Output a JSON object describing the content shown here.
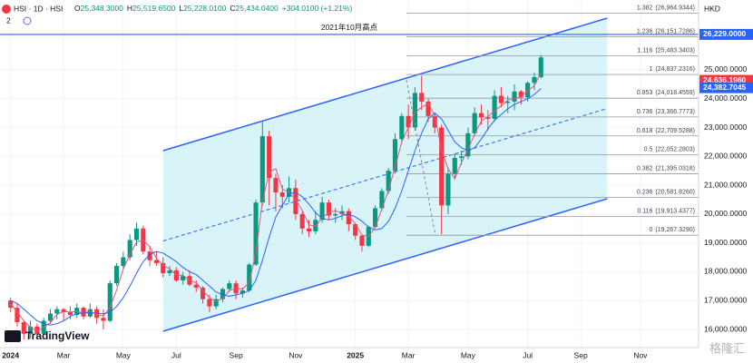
{
  "header": {
    "symbol": "HSI · 1D · HSI",
    "ohlc": [
      {
        "key": "O",
        "value": "25,348.3000"
      },
      {
        "key": "H",
        "value": "25,519.6500"
      },
      {
        "key": "L",
        "value": "25,228.0100"
      },
      {
        "key": "C",
        "value": "25,434.0400"
      }
    ],
    "change": "+304.0100 (+1.21%)",
    "indicators": "2",
    "currency": "HKD",
    "logo": "TradingView",
    "watermark": "格隆汇"
  },
  "chart_data": {
    "type": "candlestick",
    "categories": [
      "2024",
      null,
      null,
      null,
      null,
      null,
      null,
      null,
      "Mar",
      null,
      null,
      null,
      null,
      null,
      null,
      null,
      null,
      "May",
      null,
      null,
      null,
      null,
      null,
      null,
      null,
      "Jul",
      null,
      null,
      null,
      null,
      null,
      null,
      null,
      null,
      "Sep",
      null,
      null,
      null,
      null,
      null,
      null,
      null,
      null,
      "Nov",
      null,
      null,
      null,
      null,
      null,
      null,
      null,
      null,
      "2025",
      null,
      null,
      null,
      null,
      null,
      null,
      null,
      "Mar",
      null,
      null,
      null,
      null,
      null,
      null,
      null,
      null,
      "May",
      null,
      null,
      null,
      null,
      null,
      null,
      null,
      null,
      "Jul",
      null,
      null,
      null,
      null,
      null,
      null,
      null,
      "Sep",
      null,
      null,
      null,
      null,
      null,
      null,
      null,
      null,
      "Nov",
      null,
      null,
      null,
      null,
      null,
      null,
      null,
      null
    ],
    "open": [
      17000,
      16750,
      16250,
      15850,
      16100,
      15850,
      16300,
      16550,
      16700,
      16600,
      16500,
      16750,
      16450,
      16700,
      16400,
      16300,
      17600,
      18200,
      18500,
      19100,
      19500,
      18700,
      18400,
      18300,
      17950,
      18050,
      17700,
      17850,
      17550,
      17450,
      17050,
      16800,
      17050,
      17400,
      17600,
      17250,
      17350,
      18250,
      20400,
      22700,
      21250,
      20750,
      20600,
      20900,
      20000,
      19500,
      19400,
      19800,
      20400,
      19950,
      20000,
      20100,
      19650,
      19250,
      18900,
      19550,
      20200,
      20800,
      21500,
      22600,
      23400,
      23000,
      24200,
      23900,
      23400,
      23000,
      20300,
      21400,
      21950,
      22000,
      22800,
      23500,
      23350,
      23300,
      24100,
      23850,
      23900,
      24250,
      24050,
      24550,
      24750,
      null,
      null,
      null,
      null,
      null,
      null,
      null,
      null,
      null,
      null,
      null,
      null,
      null,
      null,
      null,
      null,
      null,
      null,
      null,
      null,
      null,
      null,
      null
    ],
    "high": [
      17100,
      16900,
      16300,
      16300,
      16200,
      16400,
      16700,
      16800,
      16750,
      16800,
      16900,
      16800,
      16900,
      16800,
      16700,
      17700,
      18300,
      18700,
      19300,
      19700,
      19600,
      18900,
      18700,
      18500,
      18200,
      18150,
      18000,
      18050,
      17700,
      17500,
      17200,
      17200,
      17450,
      17700,
      17700,
      17450,
      18300,
      20500,
      23200,
      22900,
      21400,
      21000,
      21300,
      21200,
      20100,
      19800,
      20100,
      20600,
      20500,
      20200,
      20300,
      20200,
      19700,
      19300,
      19600,
      20300,
      20900,
      21600,
      22800,
      23500,
      23800,
      24400,
      24800,
      24000,
      23500,
      23100,
      21600,
      22100,
      22200,
      23000,
      23700,
      23800,
      23600,
      24300,
      24400,
      24100,
      24500,
      24300,
      24600,
      24900,
      25520,
      null,
      null,
      null,
      null,
      null,
      null,
      null,
      null,
      null,
      null,
      null,
      null,
      null,
      null,
      null,
      null,
      null,
      null,
      null,
      null,
      null,
      null,
      null
    ],
    "low": [
      16600,
      16100,
      15650,
      15700,
      15700,
      15800,
      16200,
      16350,
      16300,
      16350,
      16400,
      16350,
      16400,
      16200,
      16000,
      16250,
      17500,
      18100,
      18400,
      18900,
      18600,
      18200,
      18200,
      17800,
      17850,
      17650,
      17550,
      17500,
      17300,
      16900,
      16600,
      16700,
      16950,
      17300,
      17050,
      17100,
      17300,
      18200,
      20300,
      20300,
      20100,
      20200,
      20400,
      19800,
      19300,
      19200,
      19300,
      19700,
      19800,
      19700,
      19800,
      19400,
      19100,
      18700,
      18850,
      19500,
      20100,
      20700,
      21400,
      22500,
      22600,
      22900,
      23600,
      23200,
      22800,
      19300,
      20000,
      21200,
      21700,
      21900,
      22700,
      23100,
      22900,
      23200,
      23700,
      23500,
      23600,
      23800,
      23900,
      24300,
      24700,
      null,
      null,
      null,
      null,
      null,
      null,
      null,
      null,
      null,
      null,
      null,
      null,
      null,
      null,
      null,
      null,
      null,
      null,
      null,
      null,
      null,
      null,
      null
    ],
    "close": [
      16750,
      16250,
      15850,
      16100,
      15850,
      16300,
      16550,
      16700,
      16600,
      16500,
      16750,
      16450,
      16700,
      16400,
      16300,
      17600,
      18200,
      18500,
      19100,
      19500,
      18700,
      18400,
      18300,
      17950,
      18050,
      17700,
      17850,
      17550,
      17450,
      17050,
      16800,
      17050,
      17400,
      17600,
      17250,
      17350,
      18250,
      20400,
      22700,
      21250,
      20750,
      20600,
      20900,
      20000,
      19500,
      19400,
      19800,
      20400,
      19950,
      20000,
      20100,
      19650,
      19250,
      18900,
      19550,
      20200,
      20800,
      21500,
      22600,
      23400,
      23000,
      24200,
      23900,
      23400,
      23000,
      20300,
      21400,
      21950,
      22000,
      22800,
      23500,
      23350,
      23300,
      24100,
      23850,
      23900,
      24250,
      24050,
      24550,
      24750,
      25430,
      null,
      null,
      null,
      null,
      null,
      null,
      null,
      null,
      null,
      null,
      null,
      null,
      null,
      null,
      null,
      null,
      null,
      null,
      null,
      null,
      null,
      null,
      null
    ],
    "ma": [
      {
        "color": "#e8537a",
        "values": [
          16900,
          16600,
          16300,
          16070,
          15950,
          16080,
          16230,
          16520,
          16620,
          16600,
          16620,
          16570,
          16630,
          16520,
          16470,
          16770,
          17370,
          18100,
          18600,
          19030,
          19100,
          18870,
          18470,
          18220,
          18100,
          17900,
          17870,
          17700,
          17620,
          17350,
          17100,
          16970,
          17080,
          17350,
          17420,
          17400,
          17620,
          18670,
          20450,
          21450,
          21570,
          20870,
          20750,
          20500,
          20130,
          19630,
          19570,
          19870,
          20050,
          20120,
          20020,
          19920,
          19670,
          19270,
          19230,
          19550,
          20180,
          20830,
          21630,
          22500,
          23000,
          23530,
          23700,
          23830,
          23430,
          22230,
          21570,
          21220,
          21780,
          22250,
          22770,
          23220,
          23380,
          23580,
          23750,
          23950,
          24000,
          24070,
          24280,
          24450,
          24910,
          null,
          null,
          null,
          null,
          null,
          null,
          null,
          null,
          null,
          null,
          null,
          null,
          null,
          null,
          null,
          null,
          null,
          null,
          null,
          null,
          null,
          null,
          null
        ]
      },
      {
        "color": "#2962ff",
        "values": [
          17000,
          16900,
          16700,
          16500,
          16300,
          16200,
          16150,
          16200,
          16300,
          16450,
          16550,
          16570,
          16580,
          16560,
          16540,
          16600,
          16800,
          17100,
          17500,
          17950,
          18350,
          18600,
          18700,
          18650,
          18500,
          18350,
          18150,
          18000,
          17900,
          17700,
          17500,
          17300,
          17200,
          17150,
          17200,
          17250,
          17350,
          17700,
          18400,
          19200,
          19900,
          20300,
          20700,
          20750,
          20600,
          20350,
          20050,
          19850,
          19800,
          19850,
          19950,
          20000,
          19900,
          19750,
          19550,
          19450,
          19500,
          19750,
          20200,
          20800,
          21500,
          22200,
          22800,
          23300,
          23500,
          23300,
          22900,
          22500,
          22300,
          22200,
          22300,
          22600,
          22950,
          23250,
          23450,
          23650,
          23800,
          23900,
          24000,
          24150,
          24350,
          null,
          null,
          null,
          null,
          null,
          null,
          null,
          null,
          null,
          null,
          null,
          null,
          null,
          null,
          null,
          null,
          null,
          null,
          null,
          null,
          null,
          null,
          null
        ]
      }
    ],
    "up_color": "#089981",
    "down_color": "#f23645",
    "ylim": [
      15371,
      27422
    ],
    "yticks": [
      {
        "value": 16000,
        "label": "16,000.0000"
      },
      {
        "value": 17000,
        "label": "17,000.0000"
      },
      {
        "value": 18000,
        "label": "18,000.0000"
      },
      {
        "value": 19000,
        "label": "19,000.0000"
      },
      {
        "value": 20000,
        "label": "20,000.0000"
      },
      {
        "value": 21000,
        "label": "21,000.0000"
      },
      {
        "value": 22000,
        "label": "22,000.0000"
      },
      {
        "value": 23000,
        "label": "23,000.0000"
      },
      {
        "value": 24000,
        "label": "24,000.0000"
      },
      {
        "value": 25000,
        "label": "25,000.0000"
      }
    ],
    "grid": true,
    "channel": {
      "from": 23,
      "to": 90,
      "upper": [
        22199,
        26793
      ],
      "lower": [
        15937,
        20531
      ],
      "color": "#2962ff",
      "fill": "#d9f4f8"
    },
    "hline": {
      "value": 26229,
      "label": "2021年10月高点",
      "color": "#2962ff"
    },
    "fib_levels": [
      {
        "ratio": "1.382",
        "value": 26964.9344,
        "label": "(26,964.9344)"
      },
      {
        "ratio": "1.236",
        "value": 26151.7286,
        "label": "(26,151.7286)"
      },
      {
        "ratio": "1.116",
        "value": 25483.3403,
        "label": "(25,483.3403)"
      },
      {
        "ratio": "1",
        "value": 24837.2316,
        "label": "(24,837.2316)"
      },
      {
        "ratio": "0.853",
        "value": 24018.4559,
        "label": "(24,018.4559)"
      },
      {
        "ratio": "0.736",
        "value": 23366.7773,
        "label": "(23,366.7773)"
      },
      {
        "ratio": "0.618",
        "value": 22709.5288,
        "label": "(22,709.5288)"
      },
      {
        "ratio": "0.5",
        "value": 22052.2803,
        "label": "(22,052.2803)"
      },
      {
        "ratio": "0.382",
        "value": 21395.0318,
        "label": "(21,395.0318)"
      },
      {
        "ratio": "0.236",
        "value": 20581.826,
        "label": "(20,581.8260)"
      },
      {
        "ratio": "0.116",
        "value": 19913.4377,
        "label": "(19,913.4377)"
      },
      {
        "ratio": "0",
        "value": 19267.329,
        "label": "(19,267.3290)"
      }
    ],
    "price_labels": [
      {
        "value": 26229,
        "label": "26,229.0000",
        "color": "#2962ff"
      },
      {
        "value": 24636.196,
        "label": "24,636.1960",
        "color": "#f23645"
      },
      {
        "value": 24382.7045,
        "label": "24,382.7045",
        "color": "#2962ff"
      }
    ]
  }
}
